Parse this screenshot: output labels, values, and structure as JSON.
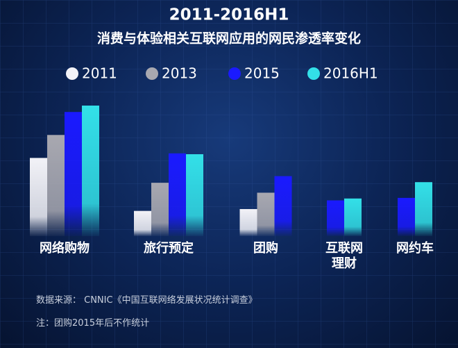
{
  "chart_data": {
    "type": "bar",
    "title": "2011-2016H1",
    "subtitle": "消费与体验相关互联网应用的网民渗透率变化",
    "categories": [
      "网络购物",
      "旅行预定",
      "团购",
      "互联网\n理财",
      "网约车"
    ],
    "series": [
      {
        "name": "2011",
        "color": "#f2f2f7",
        "values": [
          37.8,
          12.2,
          13.1,
          null,
          null
        ]
      },
      {
        "name": "2013",
        "color": "#a8a8b0",
        "values": [
          48.9,
          25.8,
          21.0,
          null,
          null
        ]
      },
      {
        "name": "2015",
        "color": "#1a1aff",
        "values": [
          60.0,
          40.0,
          29.0,
          17.3,
          18.5
        ]
      },
      {
        "name": "2016H1",
        "color": "#33e0e8",
        "values": [
          63.1,
          39.6,
          null,
          18.2,
          26.1
        ]
      }
    ],
    "source": "数据来源： CNNIC《中国互联网络发展状况统计调查》",
    "note": "注：团购2015年后不作统计"
  }
}
